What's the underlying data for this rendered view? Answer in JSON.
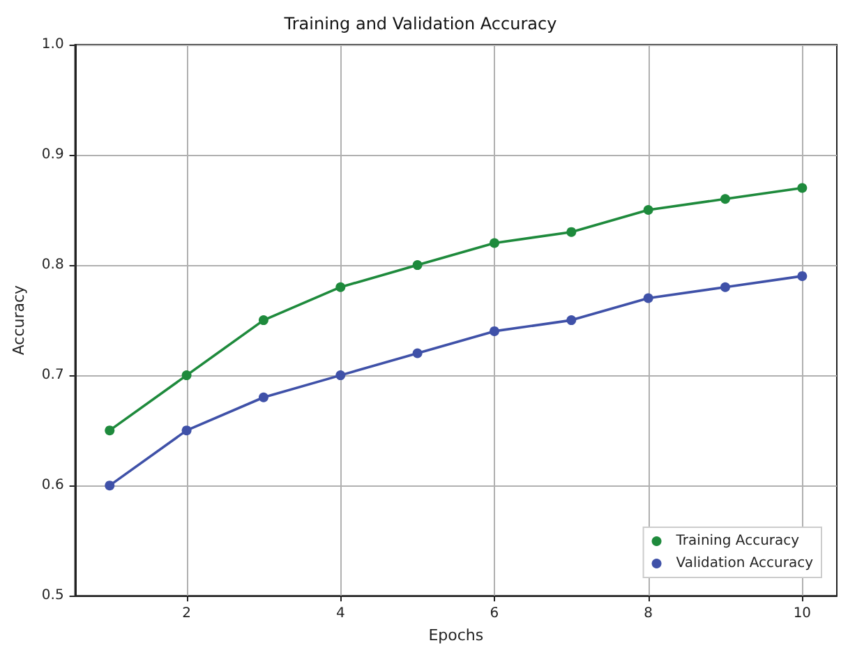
{
  "chart_data": {
    "type": "line",
    "title": "Training and Validation Accuracy",
    "xlabel": "Epochs",
    "ylabel": "Accuracy",
    "x": [
      1,
      2,
      3,
      4,
      5,
      6,
      7,
      8,
      9,
      10
    ],
    "series": [
      {
        "name": "Training Accuracy",
        "color": "#1e8a3c",
        "values": [
          0.65,
          0.7,
          0.75,
          0.78,
          0.8,
          0.82,
          0.83,
          0.85,
          0.86,
          0.87
        ]
      },
      {
        "name": "Validation Accuracy",
        "color": "#3f51a8",
        "values": [
          0.6,
          0.65,
          0.68,
          0.7,
          0.72,
          0.74,
          0.75,
          0.77,
          0.78,
          0.79
        ]
      }
    ],
    "xlim": [
      0.55,
      10.45
    ],
    "xticks": [
      2,
      4,
      6,
      8,
      10
    ],
    "ylim": [
      0.5,
      1.0
    ],
    "yticks": [
      0.5,
      0.6,
      0.7,
      0.8,
      0.9,
      {
        "value": 1,
        "label": "1.0"
      }
    ],
    "grid": true,
    "legend": "bottom right",
    "marker": "circle",
    "line_style": "solid"
  }
}
